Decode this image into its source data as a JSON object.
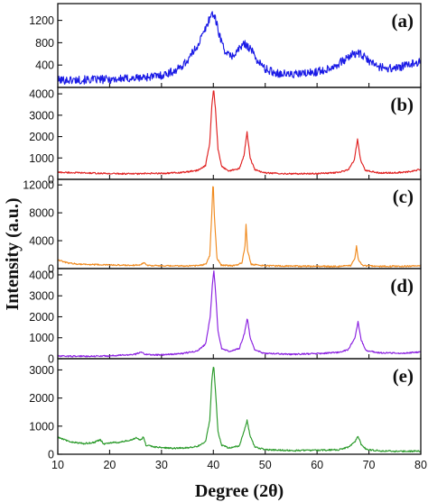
{
  "chart_data": {
    "type": "line",
    "xlabel": "Degree (2θ)",
    "ylabel": "Intensity (a.u.)",
    "xlim": [
      10,
      80
    ],
    "xticks": [
      10,
      20,
      30,
      40,
      50,
      60,
      70,
      80
    ],
    "grid": false,
    "legend": "none",
    "panels": [
      {
        "label": "(a)",
        "color": "#1a1ae6",
        "ylim": [
          0,
          1500
        ],
        "yticks": [
          400,
          800,
          1200
        ],
        "points": [
          [
            10,
            130
          ],
          [
            15,
            135
          ],
          [
            20,
            145
          ],
          [
            25,
            165
          ],
          [
            30,
            215
          ],
          [
            33,
            310
          ],
          [
            35,
            480
          ],
          [
            37,
            760
          ],
          [
            38.5,
            1050
          ],
          [
            39.3,
            1250
          ],
          [
            39.8,
            1330
          ],
          [
            40.3,
            1260
          ],
          [
            41,
            1000
          ],
          [
            42,
            700
          ],
          [
            43,
            560
          ],
          [
            44,
            580
          ],
          [
            45.2,
            720
          ],
          [
            46.2,
            780
          ],
          [
            47.2,
            690
          ],
          [
            48.5,
            480
          ],
          [
            50,
            330
          ],
          [
            52,
            260
          ],
          [
            55,
            230
          ],
          [
            58,
            250
          ],
          [
            61,
            300
          ],
          [
            63,
            370
          ],
          [
            65,
            470
          ],
          [
            66.5,
            570
          ],
          [
            67.6,
            620
          ],
          [
            68.6,
            580
          ],
          [
            70,
            470
          ],
          [
            72,
            370
          ],
          [
            74,
            340
          ],
          [
            76,
            360
          ],
          [
            78,
            410
          ],
          [
            79.5,
            460
          ],
          [
            80,
            450
          ]
        ]
      },
      {
        "label": "(b)",
        "color": "#e02020",
        "ylim": [
          0,
          4300
        ],
        "yticks": [
          0,
          1000,
          2000,
          3000,
          4000
        ],
        "points": [
          [
            10,
            330
          ],
          [
            15,
            300
          ],
          [
            20,
            270
          ],
          [
            25,
            260
          ],
          [
            30,
            280
          ],
          [
            34,
            320
          ],
          [
            37,
            420
          ],
          [
            38.5,
            650
          ],
          [
            39.3,
            1700
          ],
          [
            39.7,
            3400
          ],
          [
            40.05,
            4250
          ],
          [
            40.4,
            3300
          ],
          [
            40.9,
            1400
          ],
          [
            41.6,
            600
          ],
          [
            43,
            400
          ],
          [
            45,
            500
          ],
          [
            45.9,
            1100
          ],
          [
            46.5,
            2200
          ],
          [
            47.1,
            1000
          ],
          [
            48,
            450
          ],
          [
            50,
            300
          ],
          [
            55,
            260
          ],
          [
            60,
            270
          ],
          [
            64,
            320
          ],
          [
            66,
            450
          ],
          [
            67.2,
            900
          ],
          [
            67.8,
            1900
          ],
          [
            68.4,
            900
          ],
          [
            69.3,
            420
          ],
          [
            72,
            300
          ],
          [
            75,
            310
          ],
          [
            78,
            360
          ],
          [
            80,
            480
          ]
        ]
      },
      {
        "label": "(c)",
        "color": "#f08a1e",
        "ylim": [
          0,
          12800
        ],
        "yticks": [
          0,
          4000,
          8000,
          12000
        ],
        "points": [
          [
            10,
            1300
          ],
          [
            11,
            1000
          ],
          [
            12,
            800
          ],
          [
            14,
            650
          ],
          [
            17,
            560
          ],
          [
            20,
            520
          ],
          [
            24,
            480
          ],
          [
            26,
            520
          ],
          [
            26.6,
            900
          ],
          [
            27.2,
            480
          ],
          [
            30,
            380
          ],
          [
            34,
            380
          ],
          [
            37,
            420
          ],
          [
            38.5,
            600
          ],
          [
            39.3,
            1800
          ],
          [
            39.7,
            8000
          ],
          [
            39.95,
            12700
          ],
          [
            40.2,
            7500
          ],
          [
            40.7,
            1500
          ],
          [
            41.5,
            500
          ],
          [
            44,
            400
          ],
          [
            45.5,
            800
          ],
          [
            46.1,
            3200
          ],
          [
            46.3,
            6300
          ],
          [
            46.6,
            2600
          ],
          [
            47.3,
            600
          ],
          [
            50,
            400
          ],
          [
            55,
            360
          ],
          [
            60,
            330
          ],
          [
            64,
            300
          ],
          [
            66.5,
            400
          ],
          [
            67.3,
            1500
          ],
          [
            67.6,
            3200
          ],
          [
            67.95,
            1300
          ],
          [
            68.8,
            420
          ],
          [
            72,
            320
          ],
          [
            76,
            330
          ],
          [
            80,
            380
          ]
        ]
      },
      {
        "label": "(d)",
        "color": "#8a1fe0",
        "ylim": [
          0,
          4300
        ],
        "yticks": [
          0,
          1000,
          2000,
          3000,
          4000
        ],
        "points": [
          [
            10,
            120
          ],
          [
            15,
            120
          ],
          [
            20,
            130
          ],
          [
            25,
            210
          ],
          [
            26,
            320
          ],
          [
            27,
            200
          ],
          [
            30,
            180
          ],
          [
            34,
            250
          ],
          [
            37,
            380
          ],
          [
            38.5,
            700
          ],
          [
            39.4,
            2000
          ],
          [
            39.8,
            3500
          ],
          [
            40.1,
            4200
          ],
          [
            40.4,
            3300
          ],
          [
            40.9,
            1300
          ],
          [
            41.6,
            500
          ],
          [
            43,
            360
          ],
          [
            45,
            480
          ],
          [
            46,
            1200
          ],
          [
            46.55,
            1950
          ],
          [
            47.1,
            1000
          ],
          [
            48,
            400
          ],
          [
            50,
            250
          ],
          [
            55,
            210
          ],
          [
            60,
            240
          ],
          [
            64,
            300
          ],
          [
            66,
            420
          ],
          [
            67.3,
            1000
          ],
          [
            67.9,
            1750
          ],
          [
            68.5,
            900
          ],
          [
            69.4,
            400
          ],
          [
            72,
            280
          ],
          [
            76,
            260
          ],
          [
            80,
            320
          ]
        ]
      },
      {
        "label": "(e)",
        "color": "#2a9a2a",
        "ylim": [
          0,
          3400
        ],
        "yticks": [
          0,
          1000,
          2000,
          3000
        ],
        "points": [
          [
            10,
            600
          ],
          [
            11.5,
            500
          ],
          [
            13,
            420
          ],
          [
            15,
            380
          ],
          [
            17,
            420
          ],
          [
            18.2,
            520
          ],
          [
            18.9,
            360
          ],
          [
            20,
            400
          ],
          [
            22,
            430
          ],
          [
            24,
            510
          ],
          [
            25.2,
            580
          ],
          [
            26,
            500
          ],
          [
            26.5,
            620
          ],
          [
            27,
            320
          ],
          [
            29,
            250
          ],
          [
            32,
            210
          ],
          [
            35,
            230
          ],
          [
            37,
            290
          ],
          [
            38.5,
            450
          ],
          [
            39.3,
            1200
          ],
          [
            39.7,
            2600
          ],
          [
            40.05,
            3200
          ],
          [
            40.4,
            2300
          ],
          [
            40.9,
            800
          ],
          [
            41.6,
            330
          ],
          [
            43,
            220
          ],
          [
            45,
            300
          ],
          [
            45.9,
            800
          ],
          [
            46.5,
            1200
          ],
          [
            47.1,
            650
          ],
          [
            48,
            260
          ],
          [
            50,
            160
          ],
          [
            55,
            130
          ],
          [
            60,
            140
          ],
          [
            64,
            160
          ],
          [
            66,
            240
          ],
          [
            67.3,
            450
          ],
          [
            67.9,
            640
          ],
          [
            68.5,
            360
          ],
          [
            69.5,
            170
          ],
          [
            72,
            120
          ],
          [
            76,
            100
          ],
          [
            80,
            110
          ]
        ]
      }
    ]
  }
}
